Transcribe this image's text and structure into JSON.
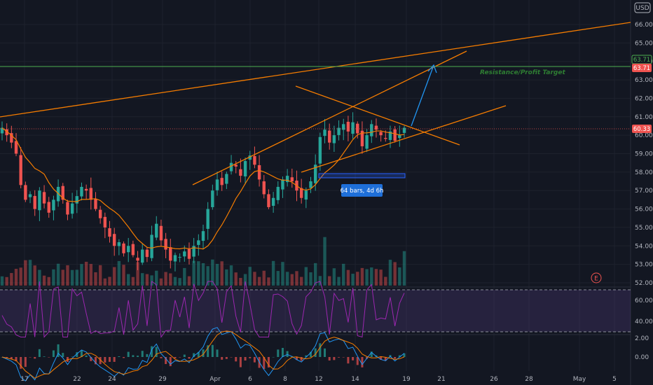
{
  "chart_data": {
    "type": "candlestick",
    "currency": "USD",
    "x_ticks": [
      "17",
      "22",
      "24",
      "29",
      "Apr",
      "6",
      "8",
      "12",
      "14",
      "19",
      "21",
      "26",
      "28",
      "May",
      "5"
    ],
    "price_axis": {
      "ticks": [
        "66.00",
        "65.00",
        "64.00",
        "63.00",
        "62.00",
        "61.00",
        "60.00",
        "59.00",
        "58.00",
        "57.00",
        "56.00",
        "55.00",
        "54.00",
        "53.00",
        "52.00"
      ],
      "ylim": [
        51.8,
        66.4
      ]
    },
    "price_tags": {
      "target_green": "63.71",
      "target_red": "63.71",
      "current": "60.33"
    },
    "annotation": "Resistance/Profit Target",
    "measure_label": "64 bars, 4d 6h",
    "rsi": {
      "ticks": [
        "60.00",
        "40.00"
      ],
      "band": [
        30,
        70
      ]
    },
    "macd": {
      "ticks": [
        "2.00",
        "0.00"
      ]
    },
    "colors": {
      "up": "#26a69a",
      "down": "#ef5350",
      "ma": "#f57c00",
      "trend": "#f57c00",
      "arrow": "#2196f3",
      "rsi": "#9c27b0",
      "target": "#4caf50",
      "measure": "#2962ff"
    },
    "closes": [
      60.4,
      60.0,
      59.6,
      59.0,
      57.3,
      56.5,
      56.8,
      56.0,
      57.0,
      56.3,
      55.8,
      56.5,
      57.2,
      56.5,
      55.7,
      56.3,
      56.7,
      57.2,
      57.0,
      56.5,
      56.0,
      55.5,
      55.0,
      54.5,
      54.0,
      54.2,
      53.6,
      54.0,
      53.5,
      53.2,
      53.8,
      53.4,
      54.6,
      55.2,
      54.3,
      53.8,
      53.2,
      53.5,
      53.4,
      53.7,
      53.3,
      54.0,
      54.3,
      54.8,
      56.0,
      57.0,
      57.6,
      57.3,
      57.9,
      58.5,
      58.3,
      57.8,
      58.6,
      58.9,
      58.4,
      57.6,
      56.8,
      56.1,
      56.6,
      57.2,
      57.6,
      57.8,
      57.5,
      57.0,
      56.6,
      57.0,
      57.5,
      58.4,
      59.9,
      60.3,
      59.6,
      60.0,
      60.4,
      60.6,
      60.2,
      60.7,
      60.1,
      59.4,
      60.0,
      60.6,
      60.3,
      60.0,
      59.8,
      60.2,
      59.7,
      60.0,
      60.4
    ]
  }
}
